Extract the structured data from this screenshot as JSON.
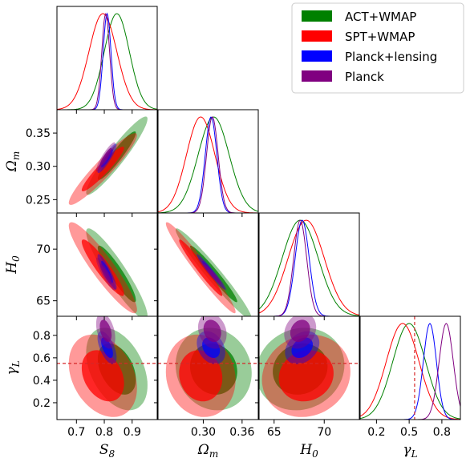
{
  "chart_data": {
    "type": "triangle-corner",
    "parameters": [
      {
        "key": "S8",
        "symbol": "S",
        "sub": "8",
        "range": [
          0.63,
          0.99
        ],
        "ticks": [
          0.7,
          0.8,
          0.9
        ],
        "tick_labels": [
          "0.7",
          "0.8",
          "0.9"
        ]
      },
      {
        "key": "Om",
        "symbol": "Ω",
        "sub": "m",
        "range": [
          0.23,
          0.385
        ],
        "ticks": [
          0.25,
          0.3,
          0.35
        ],
        "tick_labels": [
          "0.25",
          "0.30",
          "0.35"
        ],
        "x_ticks": [
          0.3,
          0.36
        ],
        "x_tick_labels": [
          "0.30",
          "0.36"
        ]
      },
      {
        "key": "H0",
        "symbol": "H",
        "sub": "0",
        "range": [
          63.5,
          73.5
        ],
        "ticks": [
          65,
          70
        ],
        "tick_labels": [
          "65",
          "70"
        ],
        "y_ticks": [
          65,
          70
        ],
        "y_tick_labels": [
          "65",
          "70"
        ]
      },
      {
        "key": "gL",
        "symbol": "γ",
        "sub": "L",
        "range": [
          0.05,
          0.97
        ],
        "ticks": [
          0.2,
          0.5,
          0.8
        ],
        "tick_labels": [
          "0.2",
          "0.5",
          "0.8"
        ],
        "y_ticks": [
          0.2,
          0.4,
          0.6,
          0.8
        ],
        "y_tick_labels": [
          "0.2",
          "0.4",
          "0.6",
          "0.8"
        ]
      }
    ],
    "reference_line": {
      "param": "gL",
      "value": 0.55,
      "color": "#d62728",
      "style": "dashed"
    },
    "legend_position": "top-right",
    "series": [
      {
        "name": "ACT+WMAP",
        "color": "#008000",
        "mean": {
          "S8": 0.845,
          "Om": 0.316,
          "H0": 67.6,
          "gL": 0.5
        },
        "sd": {
          "S8": 0.045,
          "Om": 0.024,
          "H0": 1.8,
          "gL": 0.15
        },
        "corr": {
          "S8-Om": 0.94,
          "S8-H0": -0.92,
          "Om-H0": -0.97,
          "S8-gL": -0.4,
          "Om-gL": -0.1,
          "H0-gL": 0.1
        }
      },
      {
        "name": "SPT+WMAP",
        "color": "#ff0000",
        "mean": {
          "S8": 0.795,
          "Om": 0.296,
          "H0": 68.2,
          "gL": 0.44
        },
        "sd": {
          "S8": 0.05,
          "Om": 0.022,
          "H0": 1.8,
          "gL": 0.15
        },
        "corr": {
          "S8-Om": 0.94,
          "S8-H0": -0.92,
          "Om-H0": -0.97,
          "S8-gL": -0.3,
          "Om-gL": -0.1,
          "H0-gL": 0.1
        }
      },
      {
        "name": "Planck+lensing",
        "color": "#0000ff",
        "mean": {
          "S8": 0.81,
          "Om": 0.312,
          "H0": 67.8,
          "gL": 0.69
        },
        "sd": {
          "S8": 0.014,
          "Om": 0.009,
          "H0": 0.7,
          "gL": 0.06
        },
        "corr": {
          "S8-Om": 0.9,
          "S8-H0": -0.9,
          "Om-H0": -0.97,
          "S8-gL": -0.6,
          "Om-gL": -0.3,
          "H0-gL": 0.3
        }
      },
      {
        "name": "Planck",
        "color": "#800080",
        "mean": {
          "S8": 0.805,
          "Om": 0.314,
          "H0": 67.6,
          "gL": 0.84
        },
        "sd": {
          "S8": 0.014,
          "Om": 0.009,
          "H0": 0.65,
          "gL": 0.065
        },
        "corr": {
          "S8-Om": 0.9,
          "S8-H0": -0.9,
          "Om-H0": -0.97,
          "S8-gL": -0.4,
          "Om-gL": -0.2,
          "H0-gL": 0.2
        }
      }
    ]
  }
}
